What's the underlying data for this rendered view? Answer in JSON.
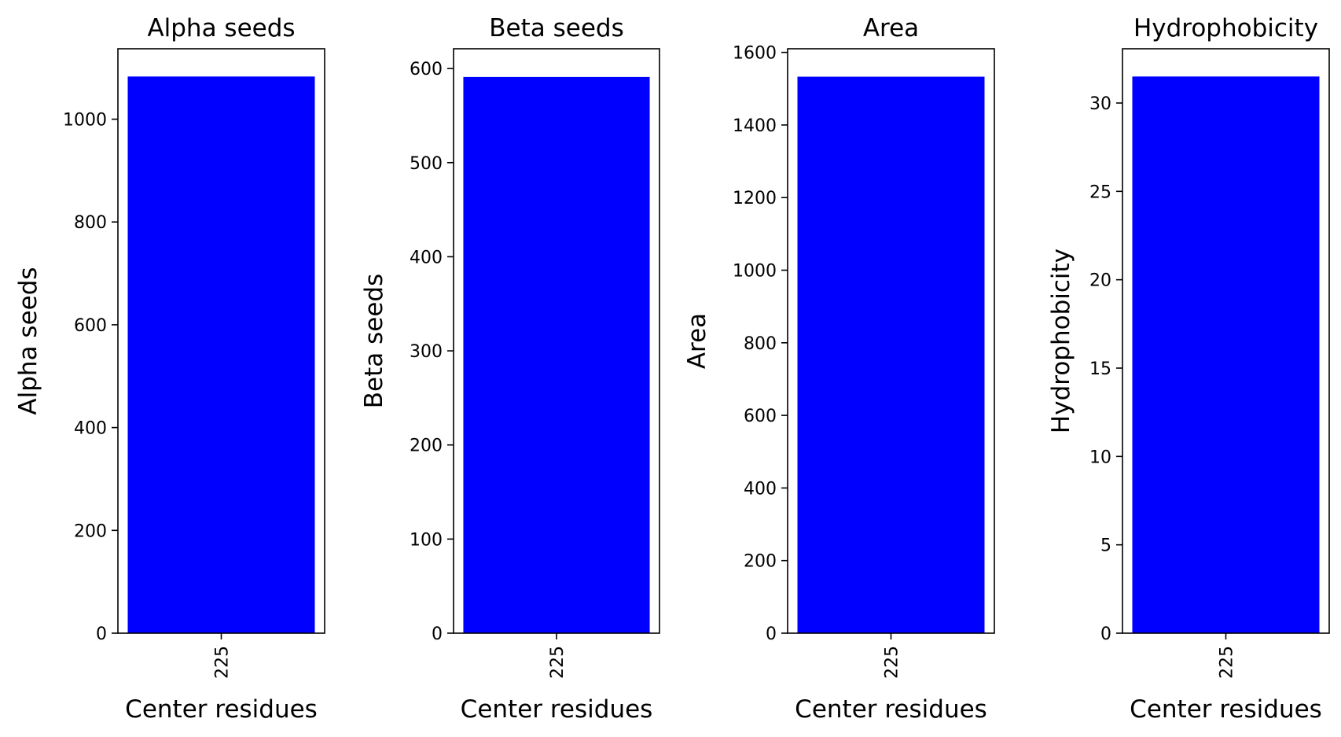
{
  "chart_data": [
    {
      "type": "bar",
      "title": "Alpha seeds",
      "xlabel": "Center residues",
      "ylabel": "Alpha seeds",
      "categories": [
        "225"
      ],
      "values": [
        1083
      ],
      "ylim": [
        0,
        1137
      ],
      "yticks": [
        0,
        200,
        400,
        600,
        800,
        1000
      ],
      "bar_color": "#0000ff",
      "grid": false
    },
    {
      "type": "bar",
      "title": "Beta seeds",
      "xlabel": "Center residues",
      "ylabel": "Beta seeds",
      "categories": [
        "225"
      ],
      "values": [
        591
      ],
      "ylim": [
        0,
        621
      ],
      "yticks": [
        0,
        100,
        200,
        300,
        400,
        500,
        600
      ],
      "bar_color": "#0000ff",
      "grid": false
    },
    {
      "type": "bar",
      "title": "Area",
      "xlabel": "Center residues",
      "ylabel": "Area",
      "categories": [
        "225"
      ],
      "values": [
        1533
      ],
      "ylim": [
        0,
        1610
      ],
      "yticks": [
        0,
        200,
        400,
        600,
        800,
        1000,
        1200,
        1400,
        1600
      ],
      "bar_color": "#0000ff",
      "grid": false
    },
    {
      "type": "bar",
      "title": "Hydrophobicity",
      "xlabel": "Center residues",
      "ylabel": "Hydrophobicity",
      "categories": [
        "225"
      ],
      "values": [
        31.5
      ],
      "ylim": [
        0,
        33.07
      ],
      "yticks": [
        0,
        5,
        10,
        15,
        20,
        25,
        30
      ],
      "bar_color": "#0000ff",
      "grid": false
    }
  ]
}
